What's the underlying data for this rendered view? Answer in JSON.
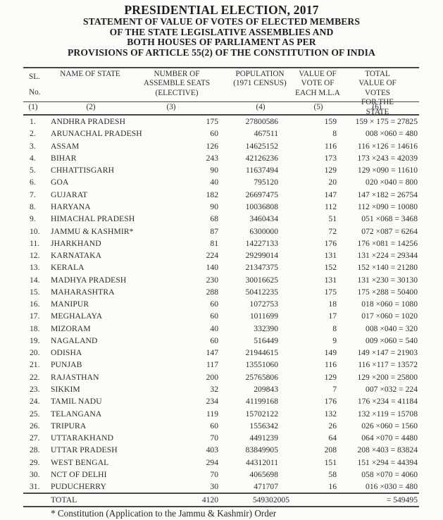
{
  "title": {
    "lines": [
      "PRESIDENTIAL ELECTION, 2017",
      "STATEMENT OF VALUE OF VOTES OF ELECTED MEMBERS",
      "OF THE STATE LEGISLATIVE ASSEMBLIES AND",
      "BOTH HOUSES OF PARLIAMENT AS PER",
      "PROVISIONS OF ARTICLE 55(2) OF THE CONSTITUTION OF INDIA"
    ]
  },
  "table": {
    "headers": {
      "sl": [
        "SL.",
        "No."
      ],
      "state": [
        "NAME OF STATE"
      ],
      "seats": [
        "NUMBER OF",
        "ASSEMBLE SEATS",
        "(ELECTIVE)"
      ],
      "population": [
        "POPULATION",
        "(1971 CENSUS)"
      ],
      "vote_value": [
        "VALUE OF",
        "VOTE OF",
        "EACH M.L.A"
      ],
      "total_value": [
        "TOTAL VALUE OF",
        "VOTES FOR THE",
        "STATE"
      ]
    },
    "column_numbers": [
      "(1)",
      "(2)",
      "(3)",
      "(4)",
      "(5)",
      "(6)"
    ],
    "rows": [
      {
        "sl": "1.",
        "state": "ANDHRA PRADESH",
        "seats": "175",
        "population": "27800586",
        "vote_value": "159",
        "total": "159 × 175 = 27825"
      },
      {
        "sl": "2.",
        "state": "ARUNACHAL PRADESH",
        "seats": "60",
        "population": "467511",
        "vote_value": "8",
        "total": "008 ×060 = 480"
      },
      {
        "sl": "3.",
        "state": "ASSAM",
        "seats": "126",
        "population": "14625152",
        "vote_value": "116",
        "total": "116 ×126 = 14616"
      },
      {
        "sl": "4.",
        "state": "BIHAR",
        "seats": "243",
        "population": "42126236",
        "vote_value": "173",
        "total": "173 ×243 = 42039"
      },
      {
        "sl": "5.",
        "state": "CHHATTISGARH",
        "seats": "90",
        "population": "11637494",
        "vote_value": "129",
        "total": "129 ×090 = 11610"
      },
      {
        "sl": "6.",
        "state": "GOA",
        "seats": "40",
        "population": "795120",
        "vote_value": "20",
        "total": "020 ×040 = 800"
      },
      {
        "sl": "7.",
        "state": "GUJARAT",
        "seats": "182",
        "population": "26697475",
        "vote_value": "147",
        "total": "147 ×182 = 26754"
      },
      {
        "sl": "8.",
        "state": "HARYANA",
        "seats": "90",
        "population": "10036808",
        "vote_value": "112",
        "total": "112 ×090 = 10080"
      },
      {
        "sl": "9.",
        "state": "HIMACHAL PRADESH",
        "seats": "68",
        "population": "3460434",
        "vote_value": "51",
        "total": "051 ×068 = 3468"
      },
      {
        "sl": "10.",
        "state": "JAMMU & KASHMIR*",
        "seats": "87",
        "population": "6300000",
        "vote_value": "72",
        "total": "072 ×087 = 6264"
      },
      {
        "sl": "11.",
        "state": "JHARKHAND",
        "seats": "81",
        "population": "14227133",
        "vote_value": "176",
        "total": "176 ×081 = 14256"
      },
      {
        "sl": "12.",
        "state": "KARNATAKA",
        "seats": "224",
        "population": "29299014",
        "vote_value": "131",
        "total": "131 ×224 = 29344"
      },
      {
        "sl": "13.",
        "state": "KERALA",
        "seats": "140",
        "population": "21347375",
        "vote_value": "152",
        "total": "152 ×140 = 21280"
      },
      {
        "sl": "14.",
        "state": "MADHYA PRADESH",
        "seats": "230",
        "population": "30016625",
        "vote_value": "131",
        "total": "131 ×230 = 30130"
      },
      {
        "sl": "15.",
        "state": "MAHARASHTRA",
        "seats": "288",
        "population": "50412235",
        "vote_value": "175",
        "total": "175 ×288 = 50400"
      },
      {
        "sl": "16.",
        "state": "MANIPUR",
        "seats": "60",
        "population": "1072753",
        "vote_value": "18",
        "total": "018 ×060 = 1080"
      },
      {
        "sl": "17.",
        "state": "MEGHALAYA",
        "seats": "60",
        "population": "1011699",
        "vote_value": "17",
        "total": "017 ×060 = 1020"
      },
      {
        "sl": "18.",
        "state": "MIZORAM",
        "seats": "40",
        "population": "332390",
        "vote_value": "8",
        "total": "008 ×040 = 320"
      },
      {
        "sl": "19.",
        "state": "NAGALAND",
        "seats": "60",
        "population": "516449",
        "vote_value": "9",
        "total": "009 ×060 = 540"
      },
      {
        "sl": "20.",
        "state": "ODISHA",
        "seats": "147",
        "population": "21944615",
        "vote_value": "149",
        "total": "149 ×147 = 21903"
      },
      {
        "sl": "21.",
        "state": "PUNJAB",
        "seats": "117",
        "population": "13551060",
        "vote_value": "116",
        "total": "116 ×117 = 13572"
      },
      {
        "sl": "22.",
        "state": "RAJASTHAN",
        "seats": "200",
        "population": "25765806",
        "vote_value": "129",
        "total": "129 ×200 = 25800"
      },
      {
        "sl": "23.",
        "state": "SIKKIM",
        "seats": "32",
        "population": "209843",
        "vote_value": "7",
        "total": "007 ×032 = 224"
      },
      {
        "sl": "24.",
        "state": "TAMIL NADU",
        "seats": "234",
        "population": "41199168",
        "vote_value": "176",
        "total": "176 ×234 = 41184"
      },
      {
        "sl": "25.",
        "state": "TELANGANA",
        "seats": "119",
        "population": "15702122",
        "vote_value": "132",
        "total": "132 ×119 = 15708"
      },
      {
        "sl": "26.",
        "state": "TRIPURA",
        "seats": "60",
        "population": "1556342",
        "vote_value": "26",
        "total": "026 ×060 = 1560"
      },
      {
        "sl": "27.",
        "state": "UTTARAKHAND",
        "seats": "70",
        "population": "4491239",
        "vote_value": "64",
        "total": "064 ×070 = 4480"
      },
      {
        "sl": "28.",
        "state": "UTTAR PRADESH",
        "seats": "403",
        "population": "83849905",
        "vote_value": "208",
        "total": "208 ×403 = 83824"
      },
      {
        "sl": "29.",
        "state": "WEST BENGAL",
        "seats": "294",
        "population": "44312011",
        "vote_value": "151",
        "total": "151 ×294 = 44394"
      },
      {
        "sl": "30.",
        "state": "NCT OF DELHI",
        "seats": "70",
        "population": "4065698",
        "vote_value": "58",
        "total": "058 ×070 = 4060"
      },
      {
        "sl": "31.",
        "state": "PUDUCHERRY",
        "seats": "30",
        "population": "471707",
        "vote_value": "16",
        "total": "016 ×030 = 480"
      }
    ],
    "total_row": {
      "label": "TOTAL",
      "seats": "4120",
      "population": "549302005",
      "vote_value": "",
      "total": "= 549495"
    }
  },
  "footnote": "* Constitution (Application to the Jammu & Kashmir) Order",
  "colors": {
    "background": "#fbfbf8",
    "text": "#2c2c30",
    "title_text": "#1d1d22",
    "rule": "#454548"
  }
}
